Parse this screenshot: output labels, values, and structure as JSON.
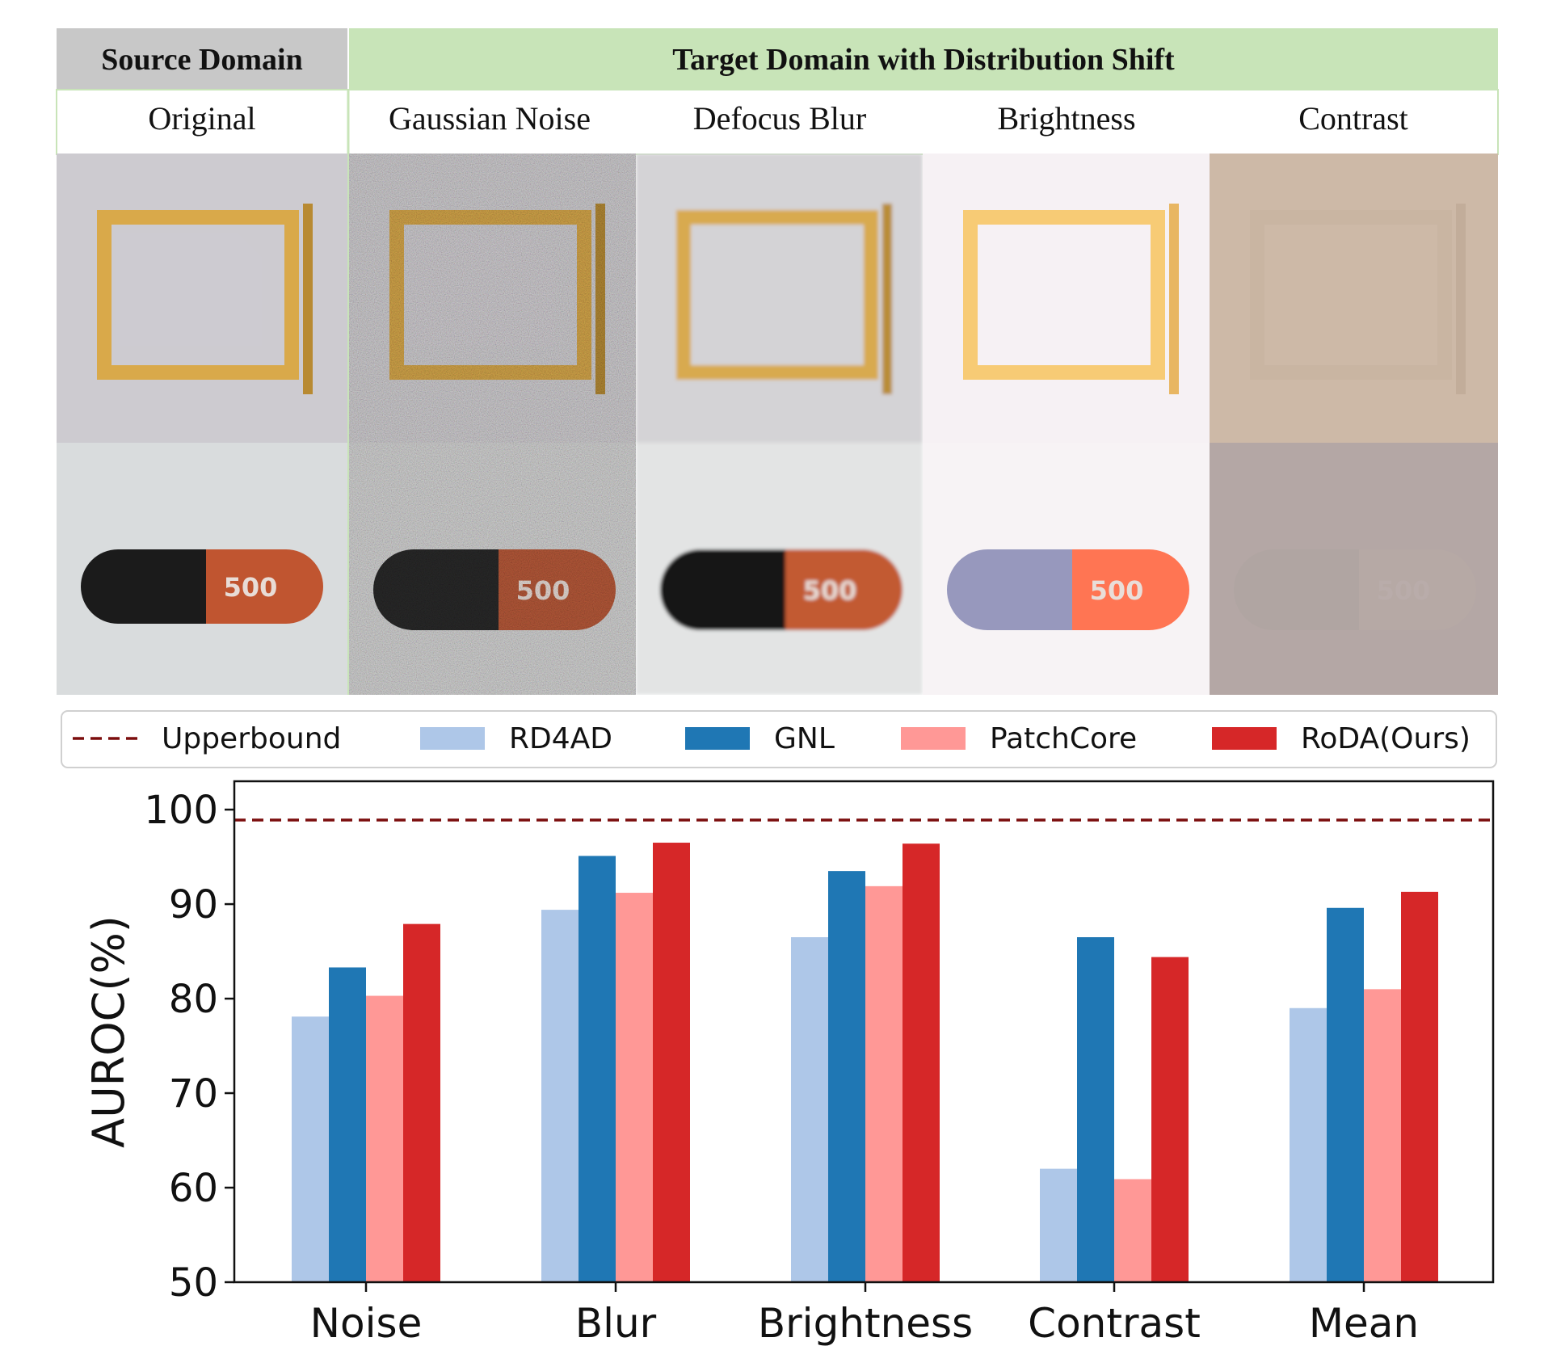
{
  "header": {
    "source_title": "Source Domain",
    "target_title": "Target Domain with Distribution Shift",
    "columns": [
      "Original",
      "Gaussian Noise",
      "Defocus Blur",
      "Brightness",
      "Contrast"
    ]
  },
  "thumbnails": {
    "rows": [
      "metal-tray",
      "capsule"
    ],
    "capsule_imprint": "500"
  },
  "colors": {
    "source_header": "#c8c8c8",
    "target_header": "#c8e4b8",
    "upperbound": "#7b0d0d",
    "rd4ad": "#aec7e8",
    "gnl": "#1f77b4",
    "patchcore": "#ff9896",
    "roda": "#d62728"
  },
  "chart_data": {
    "type": "bar",
    "categories": [
      "Noise",
      "Blur",
      "Brightness",
      "Contrast",
      "Mean"
    ],
    "series": [
      {
        "name": "RD4AD",
        "values": [
          78.1,
          89.4,
          86.5,
          62.0,
          79.0
        ]
      },
      {
        "name": "GNL",
        "values": [
          83.3,
          95.1,
          93.5,
          86.5,
          89.6
        ]
      },
      {
        "name": "PatchCore",
        "values": [
          80.3,
          91.2,
          91.9,
          60.9,
          81.0
        ]
      },
      {
        "name": "RoDA(Ours)",
        "values": [
          87.9,
          96.5,
          96.4,
          84.4,
          91.3
        ]
      }
    ],
    "upperbound": {
      "name": "Upperbound",
      "value": 98.9
    },
    "ylabel": "AUROC(%)",
    "xlabel": "",
    "ylim": [
      50,
      103
    ],
    "yticks": [
      50,
      60,
      70,
      80,
      90,
      100
    ],
    "legend_position": "top"
  }
}
